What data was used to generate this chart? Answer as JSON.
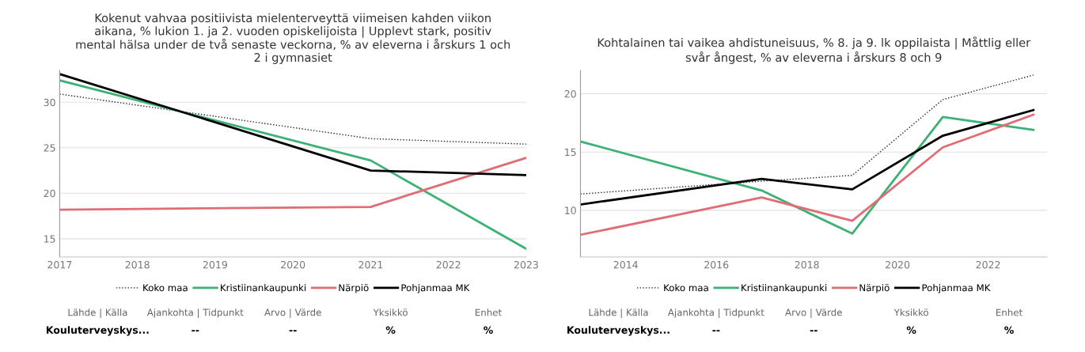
{
  "chart_data": [
    {
      "type": "line",
      "title": "Kokenut vahvaa positiivista mielenterveyttä viimeisen kahden viikon aikana, % lukion 1. ja 2. vuoden opiskelijoista | Upplevt stark, positiv mental hälsa under de två senaste veckorna, % av eleverna i årskurs 1 och 2 i gymnasiet",
      "x": [
        2017,
        2021,
        2023
      ],
      "xlim": [
        2017,
        2023
      ],
      "xticks": [
        2017,
        2018,
        2019,
        2020,
        2021,
        2022,
        2023
      ],
      "ylim": [
        13,
        33.5
      ],
      "yticks": [
        15,
        20,
        25,
        30
      ],
      "grid": "y",
      "legend": "bottom",
      "series": [
        {
          "name": "Koko maa",
          "color": "#222222",
          "line_style": "dotted",
          "values": [
            30.9,
            26.0,
            25.4
          ]
        },
        {
          "name": "Kristiinankaupunki",
          "color": "#3bb273",
          "values": [
            32.4,
            23.6,
            13.9
          ]
        },
        {
          "name": "Närpiö",
          "color": "#e06c75",
          "values": [
            18.2,
            18.5,
            23.9
          ]
        },
        {
          "name": "Pohjanmaa MK",
          "color": "#000000",
          "values": [
            33.1,
            22.5,
            22.0
          ]
        }
      ],
      "annotations": [
        "Lähde | Källa",
        "Ajankohta | Tidpunkt",
        "Arvo | Värde",
        "Yksikkö",
        "Enhet",
        "Kouluterveyskys...",
        "--",
        "--",
        "%",
        "%"
      ]
    },
    {
      "type": "line",
      "title": "Kohtalainen tai vaikea ahdistuneisuus, % 8. ja 9. lk oppilaista | Måttlig eller svår ångest, % av eleverna i årskurs 8 och 9",
      "x": [
        2013,
        2017,
        2019,
        2021,
        2023
      ],
      "xlim": [
        2013,
        2023.3
      ],
      "xticks": [
        2014,
        2016,
        2018,
        2020,
        2022
      ],
      "ylim": [
        6,
        22
      ],
      "yticks": [
        10,
        15,
        20
      ],
      "grid": "y",
      "legend": "bottom",
      "series": [
        {
          "name": "Koko maa",
          "color": "#222222",
          "line_style": "dotted",
          "values": [
            11.4,
            12.5,
            13.0,
            19.5,
            21.6
          ]
        },
        {
          "name": "Kristiinankaupunki",
          "color": "#3bb273",
          "values": [
            15.9,
            11.7,
            8.0,
            18.0,
            16.9
          ]
        },
        {
          "name": "Närpiö",
          "color": "#e06c75",
          "values": [
            7.9,
            11.1,
            9.1,
            15.4,
            18.2
          ]
        },
        {
          "name": "Pohjanmaa MK",
          "color": "#000000",
          "values": [
            10.5,
            12.7,
            11.8,
            16.4,
            18.6
          ]
        }
      ],
      "annotations": [
        "Lähde | Källa",
        "Ajankohta | Tidpunkt",
        "Arvo | Värde",
        "Yksikkö",
        "Enhet",
        "Kouluterveyskys...",
        "--",
        "--",
        "%",
        "%"
      ]
    }
  ]
}
